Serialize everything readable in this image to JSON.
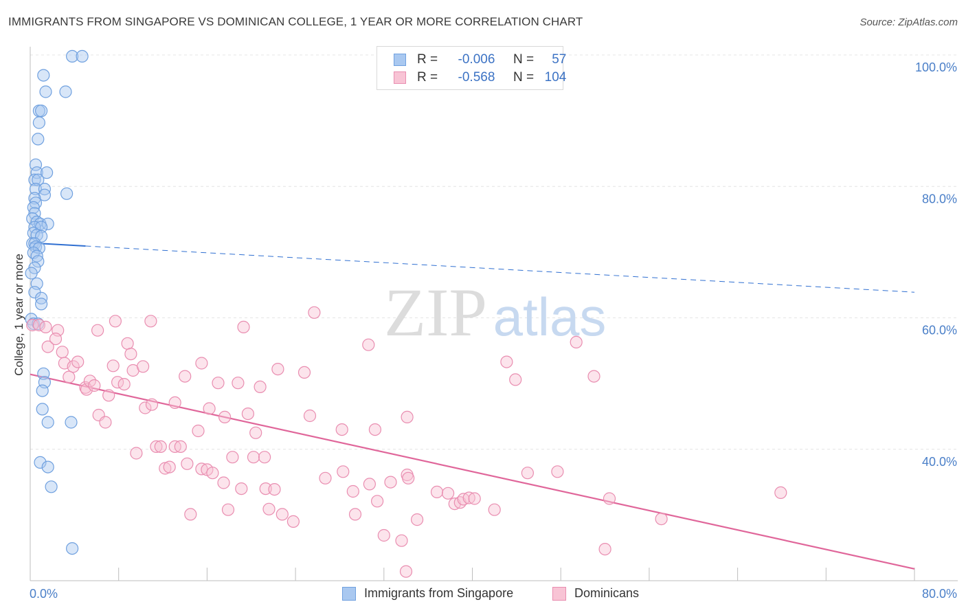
{
  "header": {
    "title": "IMMIGRANTS FROM SINGAPORE VS DOMINICAN COLLEGE, 1 YEAR OR MORE CORRELATION CHART",
    "source": "Source: ZipAtlas.com"
  },
  "watermark": {
    "zip": "ZIP",
    "atlas": "atlas"
  },
  "legend": {
    "r_label": "R =",
    "n_label": "N =",
    "series": [
      {
        "r": "-0.006",
        "n": "57",
        "color": "#a9c8f0",
        "border": "#6fa0df"
      },
      {
        "r": "-0.568",
        "n": "104",
        "color": "#f8c4d5",
        "border": "#e98db0"
      }
    ]
  },
  "bottom_legend": {
    "items": [
      {
        "label": "Immigrants from Singapore"
      },
      {
        "label": "Dominicans"
      }
    ]
  },
  "chart_data": {
    "type": "scatter",
    "title": "IMMIGRANTS FROM SINGAPORE VS DOMINICAN COLLEGE, 1 YEAR OR MORE CORRELATION CHART",
    "xlabel": "",
    "ylabel": "College, 1 year or more",
    "xlim": [
      0,
      80
    ],
    "ylim": [
      20,
      100
    ],
    "x_tick_labels": [
      "0.0%",
      "80.0%"
    ],
    "y_tick_labels": [
      "100.0%",
      "80.0%",
      "60.0%",
      "40.0%"
    ],
    "y_ticks": [
      100,
      80,
      60,
      40
    ],
    "grid": true,
    "legend_position": "top-center",
    "colors": {
      "singapore": "#6fa0df",
      "dominicans": "#e98db0",
      "singapore_line": "#2f6fd1",
      "dominicans_line": "#e0669a"
    },
    "series": [
      {
        "name": "Immigrants from Singapore",
        "r": -0.006,
        "n": 57,
        "trend": {
          "x": [
            0,
            80
          ],
          "y": [
            71.4,
            63.9
          ],
          "solid_until_x": 5
        },
        "points": [
          [
            3.8,
            99.8
          ],
          [
            4.7,
            99.8
          ],
          [
            1.2,
            96.9
          ],
          [
            1.4,
            94.4
          ],
          [
            3.2,
            94.4
          ],
          [
            0.8,
            91.5
          ],
          [
            1.0,
            91.5
          ],
          [
            0.8,
            89.7
          ],
          [
            0.7,
            87.2
          ],
          [
            0.5,
            83.3
          ],
          [
            0.6,
            82.1
          ],
          [
            1.5,
            82.1
          ],
          [
            0.4,
            81.0
          ],
          [
            0.7,
            81.0
          ],
          [
            0.5,
            79.6
          ],
          [
            1.3,
            79.6
          ],
          [
            1.3,
            78.7
          ],
          [
            3.3,
            78.9
          ],
          [
            0.4,
            78.2
          ],
          [
            0.5,
            77.5
          ],
          [
            0.3,
            76.8
          ],
          [
            0.4,
            75.9
          ],
          [
            0.2,
            75.1
          ],
          [
            0.6,
            74.6
          ],
          [
            0.9,
            74.3
          ],
          [
            1.6,
            74.3
          ],
          [
            0.4,
            73.8
          ],
          [
            1.0,
            73.8
          ],
          [
            0.3,
            72.9
          ],
          [
            0.6,
            72.6
          ],
          [
            1.0,
            72.4
          ],
          [
            0.2,
            71.3
          ],
          [
            0.4,
            71.3
          ],
          [
            0.5,
            70.8
          ],
          [
            0.8,
            70.6
          ],
          [
            0.3,
            69.9
          ],
          [
            0.6,
            69.4
          ],
          [
            0.7,
            68.6
          ],
          [
            0.4,
            67.6
          ],
          [
            0.1,
            66.8
          ],
          [
            0.6,
            65.2
          ],
          [
            0.4,
            63.9
          ],
          [
            1.0,
            63.0
          ],
          [
            1.0,
            62.1
          ],
          [
            0.1,
            59.8
          ],
          [
            0.3,
            59.1
          ],
          [
            0.7,
            59.1
          ],
          [
            1.2,
            51.5
          ],
          [
            1.3,
            50.2
          ],
          [
            1.1,
            48.9
          ],
          [
            1.1,
            46.1
          ],
          [
            1.6,
            44.1
          ],
          [
            3.7,
            44.1
          ],
          [
            0.9,
            38.0
          ],
          [
            1.6,
            37.3
          ],
          [
            1.9,
            34.3
          ],
          [
            3.8,
            24.9
          ]
        ]
      },
      {
        "name": "Dominicans",
        "r": -0.568,
        "n": 104,
        "trend": {
          "x": [
            0,
            80
          ],
          "y": [
            51.4,
            21.8
          ]
        },
        "points": [
          [
            0.2,
            58.9
          ],
          [
            0.8,
            58.9
          ],
          [
            1.4,
            58.6
          ],
          [
            2.5,
            58.1
          ],
          [
            1.6,
            55.6
          ],
          [
            2.3,
            56.8
          ],
          [
            2.9,
            54.8
          ],
          [
            3.1,
            53.1
          ],
          [
            3.5,
            51.0
          ],
          [
            3.9,
            52.6
          ],
          [
            4.3,
            53.3
          ],
          [
            5.0,
            49.4
          ],
          [
            5.1,
            49.1
          ],
          [
            5.4,
            50.4
          ],
          [
            5.8,
            49.7
          ],
          [
            6.2,
            45.2
          ],
          [
            6.8,
            44.1
          ],
          [
            7.1,
            48.2
          ],
          [
            6.1,
            58.1
          ],
          [
            7.7,
            59.5
          ],
          [
            7.5,
            52.7
          ],
          [
            7.9,
            50.2
          ],
          [
            8.5,
            49.9
          ],
          [
            8.8,
            56.1
          ],
          [
            9.1,
            54.5
          ],
          [
            9.3,
            52.0
          ],
          [
            10.2,
            52.6
          ],
          [
            9.6,
            39.4
          ],
          [
            10.4,
            46.3
          ],
          [
            11.0,
            46.8
          ],
          [
            10.9,
            59.5
          ],
          [
            11.4,
            40.4
          ],
          [
            11.8,
            40.4
          ],
          [
            12.2,
            37.1
          ],
          [
            12.6,
            37.3
          ],
          [
            13.1,
            40.4
          ],
          [
            13.6,
            40.4
          ],
          [
            13.1,
            47.1
          ],
          [
            14.0,
            51.1
          ],
          [
            14.2,
            37.8
          ],
          [
            14.5,
            30.1
          ],
          [
            15.2,
            42.8
          ],
          [
            15.5,
            37.0
          ],
          [
            16.0,
            36.9
          ],
          [
            16.2,
            46.2
          ],
          [
            16.5,
            36.4
          ],
          [
            15.5,
            53.1
          ],
          [
            17.0,
            50.1
          ],
          [
            17.5,
            34.9
          ],
          [
            17.6,
            44.9
          ],
          [
            17.9,
            30.8
          ],
          [
            18.3,
            38.8
          ],
          [
            18.8,
            50.1
          ],
          [
            19.1,
            34.0
          ],
          [
            19.3,
            58.6
          ],
          [
            19.7,
            45.4
          ],
          [
            20.2,
            38.8
          ],
          [
            20.4,
            42.5
          ],
          [
            20.8,
            49.5
          ],
          [
            21.2,
            38.8
          ],
          [
            21.3,
            34.0
          ],
          [
            21.6,
            30.9
          ],
          [
            22.1,
            33.9
          ],
          [
            22.4,
            52.2
          ],
          [
            22.8,
            30.1
          ],
          [
            23.8,
            29.0
          ],
          [
            24.8,
            51.7
          ],
          [
            25.3,
            45.1
          ],
          [
            25.7,
            60.8
          ],
          [
            26.7,
            35.6
          ],
          [
            28.3,
            36.6
          ],
          [
            28.2,
            43.0
          ],
          [
            29.2,
            33.6
          ],
          [
            29.4,
            30.1
          ],
          [
            30.6,
            55.9
          ],
          [
            30.7,
            34.7
          ],
          [
            31.2,
            43.0
          ],
          [
            31.4,
            32.1
          ],
          [
            32.0,
            26.9
          ],
          [
            32.6,
            35.0
          ],
          [
            33.6,
            26.1
          ],
          [
            34.1,
            44.9
          ],
          [
            34.1,
            36.1
          ],
          [
            34.2,
            35.6
          ],
          [
            35.0,
            29.3
          ],
          [
            36.8,
            33.5
          ],
          [
            37.8,
            33.3
          ],
          [
            38.4,
            31.7
          ],
          [
            38.9,
            31.9
          ],
          [
            39.2,
            32.4
          ],
          [
            39.7,
            32.6
          ],
          [
            40.2,
            32.5
          ],
          [
            42.0,
            30.8
          ],
          [
            43.1,
            53.3
          ],
          [
            43.9,
            50.6
          ],
          [
            45.0,
            36.4
          ],
          [
            47.7,
            36.6
          ],
          [
            49.4,
            56.3
          ],
          [
            51.0,
            51.1
          ],
          [
            52.4,
            32.5
          ],
          [
            52.0,
            24.8
          ],
          [
            57.1,
            29.4
          ],
          [
            67.9,
            33.4
          ],
          [
            34.0,
            21.4
          ]
        ]
      }
    ]
  }
}
